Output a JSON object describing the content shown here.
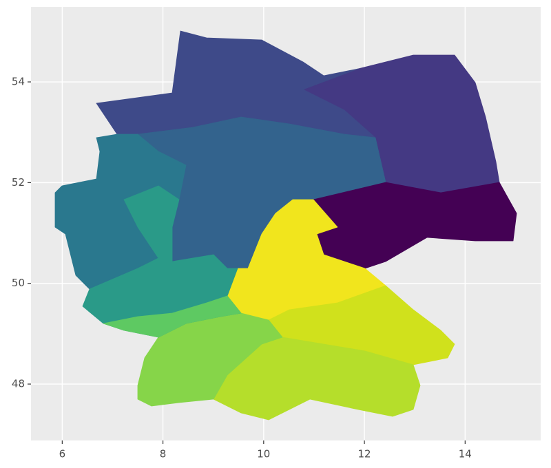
{
  "chart_data": {
    "type": "map",
    "xlim": [
      5.38,
      15.5
    ],
    "ylim": [
      46.88,
      55.49
    ],
    "xticks": [
      6,
      8,
      10,
      12,
      14
    ],
    "yticks": [
      48,
      50,
      52,
      54
    ],
    "grid": true
  }
}
